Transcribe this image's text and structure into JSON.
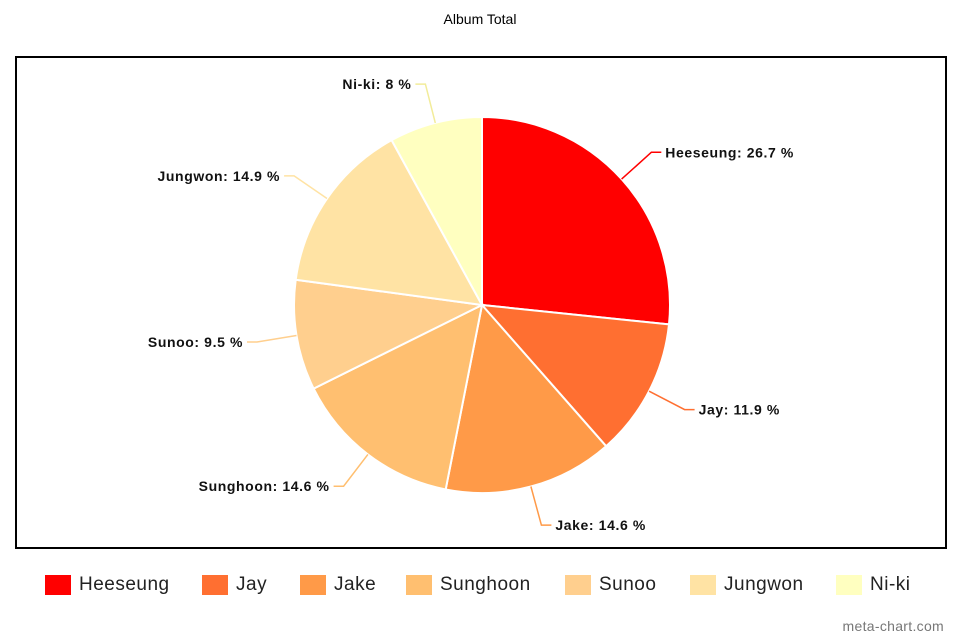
{
  "chart_data": {
    "type": "pie",
    "title": "Album Total",
    "slices": [
      {
        "label": "Heeseung",
        "value": 26.7,
        "display": "Heeseung: 26.7 %",
        "color": "#FF0000"
      },
      {
        "label": "Jay",
        "value": 11.9,
        "display": "Jay: 11.9 %",
        "color": "#FF6F31"
      },
      {
        "label": "Jake",
        "value": 14.6,
        "display": "Jake: 14.6 %",
        "color": "#FF9A48"
      },
      {
        "label": "Sunghoon",
        "value": 14.6,
        "display": "Sunghoon: 14.6 %",
        "color": "#FFBF70"
      },
      {
        "label": "Sunoo",
        "value": 9.5,
        "display": "Sunoo: 9.5 %",
        "color": "#FFCF8E"
      },
      {
        "label": "Jungwon",
        "value": 14.9,
        "display": "Jungwon: 14.9 %",
        "color": "#FFE3A4"
      },
      {
        "label": "Ni-ki",
        "value": 8,
        "display": "Ni-ki: 8 %",
        "color": "#FFFFC0"
      }
    ],
    "legend": "bottom"
  },
  "watermark": "meta-chart.com"
}
